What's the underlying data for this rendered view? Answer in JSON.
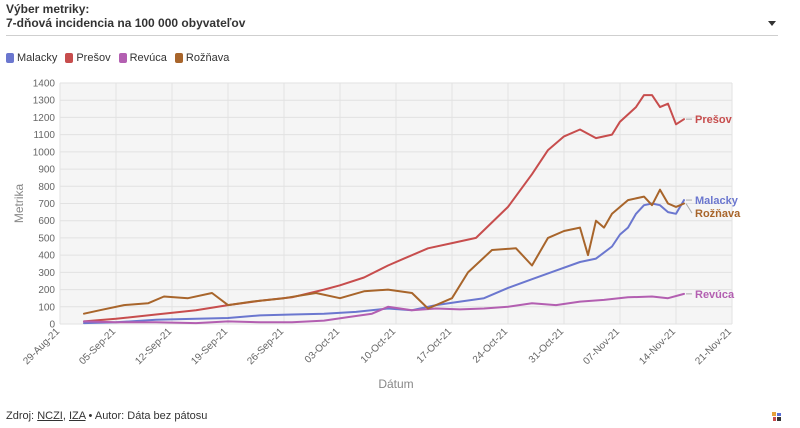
{
  "selector": {
    "label": "Výber metriky:",
    "value": "7-dňová incidencia na 100 000 obyvateľov"
  },
  "footer": {
    "prefix": "Zdroj: ",
    "source1": "NCZI",
    "separator": ", ",
    "source2": "IZA",
    "suffix": " • Autor: Dáta bez pátosu"
  },
  "chart_data": {
    "type": "line",
    "xlabel": "Dátum",
    "ylabel": "Metrika",
    "ylim": [
      0,
      1400
    ],
    "yticks": [
      0,
      100,
      200,
      300,
      400,
      500,
      600,
      700,
      800,
      900,
      1000,
      1100,
      1200,
      1300,
      1400
    ],
    "xlim": [
      "2021-08-29",
      "2021-11-21"
    ],
    "xticks": [
      "29-Aug-21",
      "05-Sep-21",
      "12-Sep-21",
      "19-Sep-21",
      "26-Sep-21",
      "03-Oct-21",
      "10-Oct-21",
      "17-Oct-21",
      "24-Oct-21",
      "31-Oct-21",
      "07-Nov-21",
      "14-Nov-21",
      "21-Nov-21"
    ],
    "grid": true,
    "legend": "top-left",
    "series": [
      {
        "name": "Malacky",
        "color": "#6b77cf",
        "end_label": "Malacky",
        "points": [
          [
            "2021-09-01",
            5
          ],
          [
            "2021-09-05",
            10
          ],
          [
            "2021-09-10",
            25
          ],
          [
            "2021-09-15",
            30
          ],
          [
            "2021-09-19",
            35
          ],
          [
            "2021-09-23",
            50
          ],
          [
            "2021-09-27",
            55
          ],
          [
            "2021-10-01",
            60
          ],
          [
            "2021-10-05",
            70
          ],
          [
            "2021-10-09",
            90
          ],
          [
            "2021-10-12",
            80
          ],
          [
            "2021-10-15",
            110
          ],
          [
            "2021-10-18",
            130
          ],
          [
            "2021-10-21",
            150
          ],
          [
            "2021-10-24",
            210
          ],
          [
            "2021-10-27",
            260
          ],
          [
            "2021-10-30",
            310
          ],
          [
            "2021-11-02",
            360
          ],
          [
            "2021-11-04",
            380
          ],
          [
            "2021-11-06",
            450
          ],
          [
            "2021-11-07",
            520
          ],
          [
            "2021-11-08",
            560
          ],
          [
            "2021-11-09",
            640
          ],
          [
            "2021-11-10",
            690
          ],
          [
            "2021-11-11",
            700
          ],
          [
            "2021-11-12",
            690
          ],
          [
            "2021-11-13",
            650
          ],
          [
            "2021-11-14",
            640
          ],
          [
            "2021-11-15",
            720
          ]
        ]
      },
      {
        "name": "Prešov",
        "color": "#c74d4d",
        "end_label": "Prešov",
        "points": [
          [
            "2021-09-01",
            15
          ],
          [
            "2021-09-05",
            30
          ],
          [
            "2021-09-10",
            55
          ],
          [
            "2021-09-15",
            80
          ],
          [
            "2021-09-19",
            110
          ],
          [
            "2021-09-23",
            135
          ],
          [
            "2021-09-27",
            155
          ],
          [
            "2021-10-01",
            200
          ],
          [
            "2021-10-03",
            225
          ],
          [
            "2021-10-06",
            270
          ],
          [
            "2021-10-09",
            340
          ],
          [
            "2021-10-11",
            380
          ],
          [
            "2021-10-14",
            440
          ],
          [
            "2021-10-17",
            470
          ],
          [
            "2021-10-20",
            500
          ],
          [
            "2021-10-24",
            680
          ],
          [
            "2021-10-27",
            870
          ],
          [
            "2021-10-29",
            1010
          ],
          [
            "2021-10-31",
            1090
          ],
          [
            "2021-11-02",
            1130
          ],
          [
            "2021-11-04",
            1080
          ],
          [
            "2021-11-06",
            1100
          ],
          [
            "2021-11-07",
            1175
          ],
          [
            "2021-11-09",
            1260
          ],
          [
            "2021-11-10",
            1330
          ],
          [
            "2021-11-11",
            1330
          ],
          [
            "2021-11-12",
            1260
          ],
          [
            "2021-11-13",
            1280
          ],
          [
            "2021-11-14",
            1160
          ],
          [
            "2021-11-15",
            1190
          ]
        ]
      },
      {
        "name": "Revúca",
        "color": "#b35fb1",
        "end_label": "Revúca",
        "points": [
          [
            "2021-09-01",
            15
          ],
          [
            "2021-09-05",
            10
          ],
          [
            "2021-09-10",
            10
          ],
          [
            "2021-09-15",
            5
          ],
          [
            "2021-09-19",
            15
          ],
          [
            "2021-09-23",
            10
          ],
          [
            "2021-09-27",
            10
          ],
          [
            "2021-10-01",
            20
          ],
          [
            "2021-10-04",
            40
          ],
          [
            "2021-10-07",
            60
          ],
          [
            "2021-10-09",
            100
          ],
          [
            "2021-10-12",
            80
          ],
          [
            "2021-10-15",
            90
          ],
          [
            "2021-10-18",
            85
          ],
          [
            "2021-10-21",
            90
          ],
          [
            "2021-10-24",
            100
          ],
          [
            "2021-10-27",
            120
          ],
          [
            "2021-10-30",
            110
          ],
          [
            "2021-11-02",
            130
          ],
          [
            "2021-11-05",
            140
          ],
          [
            "2021-11-08",
            155
          ],
          [
            "2021-11-11",
            160
          ],
          [
            "2021-11-13",
            150
          ],
          [
            "2021-11-15",
            175
          ]
        ]
      },
      {
        "name": "Rožňava",
        "color": "#a8652b",
        "end_label": "Rožňava",
        "points": [
          [
            "2021-09-01",
            60
          ],
          [
            "2021-09-03",
            80
          ],
          [
            "2021-09-06",
            110
          ],
          [
            "2021-09-09",
            120
          ],
          [
            "2021-09-11",
            160
          ],
          [
            "2021-09-14",
            150
          ],
          [
            "2021-09-17",
            180
          ],
          [
            "2021-09-19",
            110
          ],
          [
            "2021-09-22",
            130
          ],
          [
            "2021-09-26",
            150
          ],
          [
            "2021-09-30",
            180
          ],
          [
            "2021-10-03",
            150
          ],
          [
            "2021-10-06",
            190
          ],
          [
            "2021-10-09",
            200
          ],
          [
            "2021-10-12",
            180
          ],
          [
            "2021-10-14",
            90
          ],
          [
            "2021-10-17",
            150
          ],
          [
            "2021-10-19",
            300
          ],
          [
            "2021-10-22",
            430
          ],
          [
            "2021-10-25",
            440
          ],
          [
            "2021-10-27",
            340
          ],
          [
            "2021-10-29",
            500
          ],
          [
            "2021-10-31",
            540
          ],
          [
            "2021-11-02",
            560
          ],
          [
            "2021-11-03",
            400
          ],
          [
            "2021-11-04",
            600
          ],
          [
            "2021-11-05",
            560
          ],
          [
            "2021-11-06",
            640
          ],
          [
            "2021-11-08",
            720
          ],
          [
            "2021-11-10",
            740
          ],
          [
            "2021-11-11",
            690
          ],
          [
            "2021-11-12",
            780
          ],
          [
            "2021-11-13",
            700
          ],
          [
            "2021-11-14",
            680
          ],
          [
            "2021-11-15",
            700
          ]
        ]
      }
    ]
  }
}
